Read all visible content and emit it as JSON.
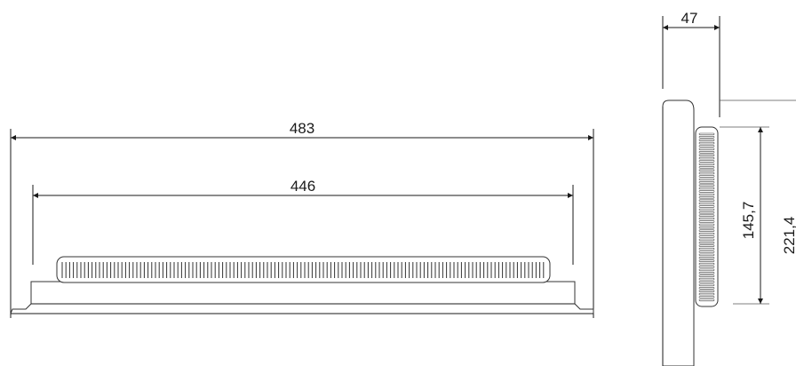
{
  "dimensions": {
    "front_overall_width": "483",
    "front_inner_width": "446",
    "side_depth": "47",
    "side_inner_height": "145,7",
    "side_overall_height": "221,4"
  },
  "colors": {
    "line": "#1a1a1a",
    "background": "#ffffff"
  }
}
